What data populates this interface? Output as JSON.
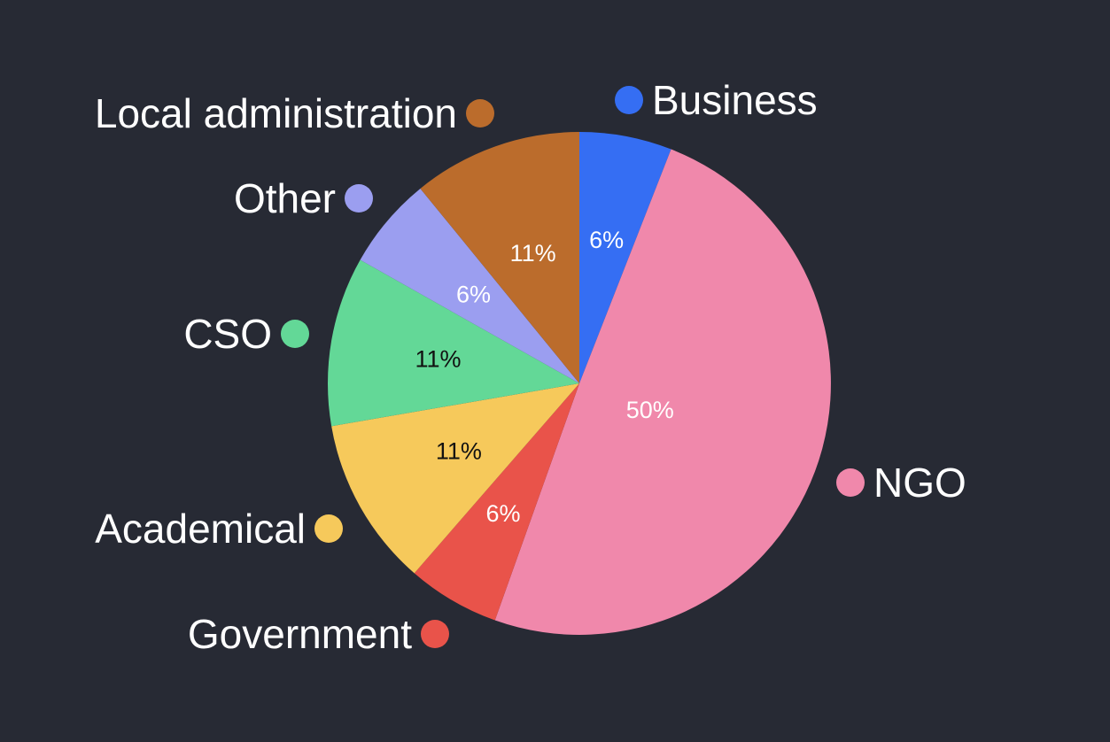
{
  "background_color": "#272a34",
  "chart_data": {
    "type": "pie",
    "title": "",
    "start_angle_deg": 0,
    "direction": "clockwise",
    "slices": [
      {
        "label": "Business",
        "value": 6,
        "display": "6%",
        "color": "#356ef3",
        "text_color": "#ffffff"
      },
      {
        "label": "NGO",
        "value": 50,
        "display": "50%",
        "color": "#f088ab",
        "text_color": "#ffffff"
      },
      {
        "label": "Government",
        "value": 6,
        "display": "6%",
        "color": "#e9534a",
        "text_color": "#ffffff"
      },
      {
        "label": "Academical",
        "value": 11,
        "display": "11%",
        "color": "#f6c95b",
        "text_color": "#111111"
      },
      {
        "label": "CSO",
        "value": 11,
        "display": "11%",
        "color": "#63d897",
        "text_color": "#111111"
      },
      {
        "label": "Other",
        "value": 6,
        "display": "6%",
        "color": "#9b9ef0",
        "text_color": "#ffffff"
      },
      {
        "label": "Local administration",
        "value": 11,
        "display": "11%",
        "color": "#bb6c2c",
        "text_color": "#ffffff"
      }
    ],
    "legend_position": "around the pie"
  }
}
